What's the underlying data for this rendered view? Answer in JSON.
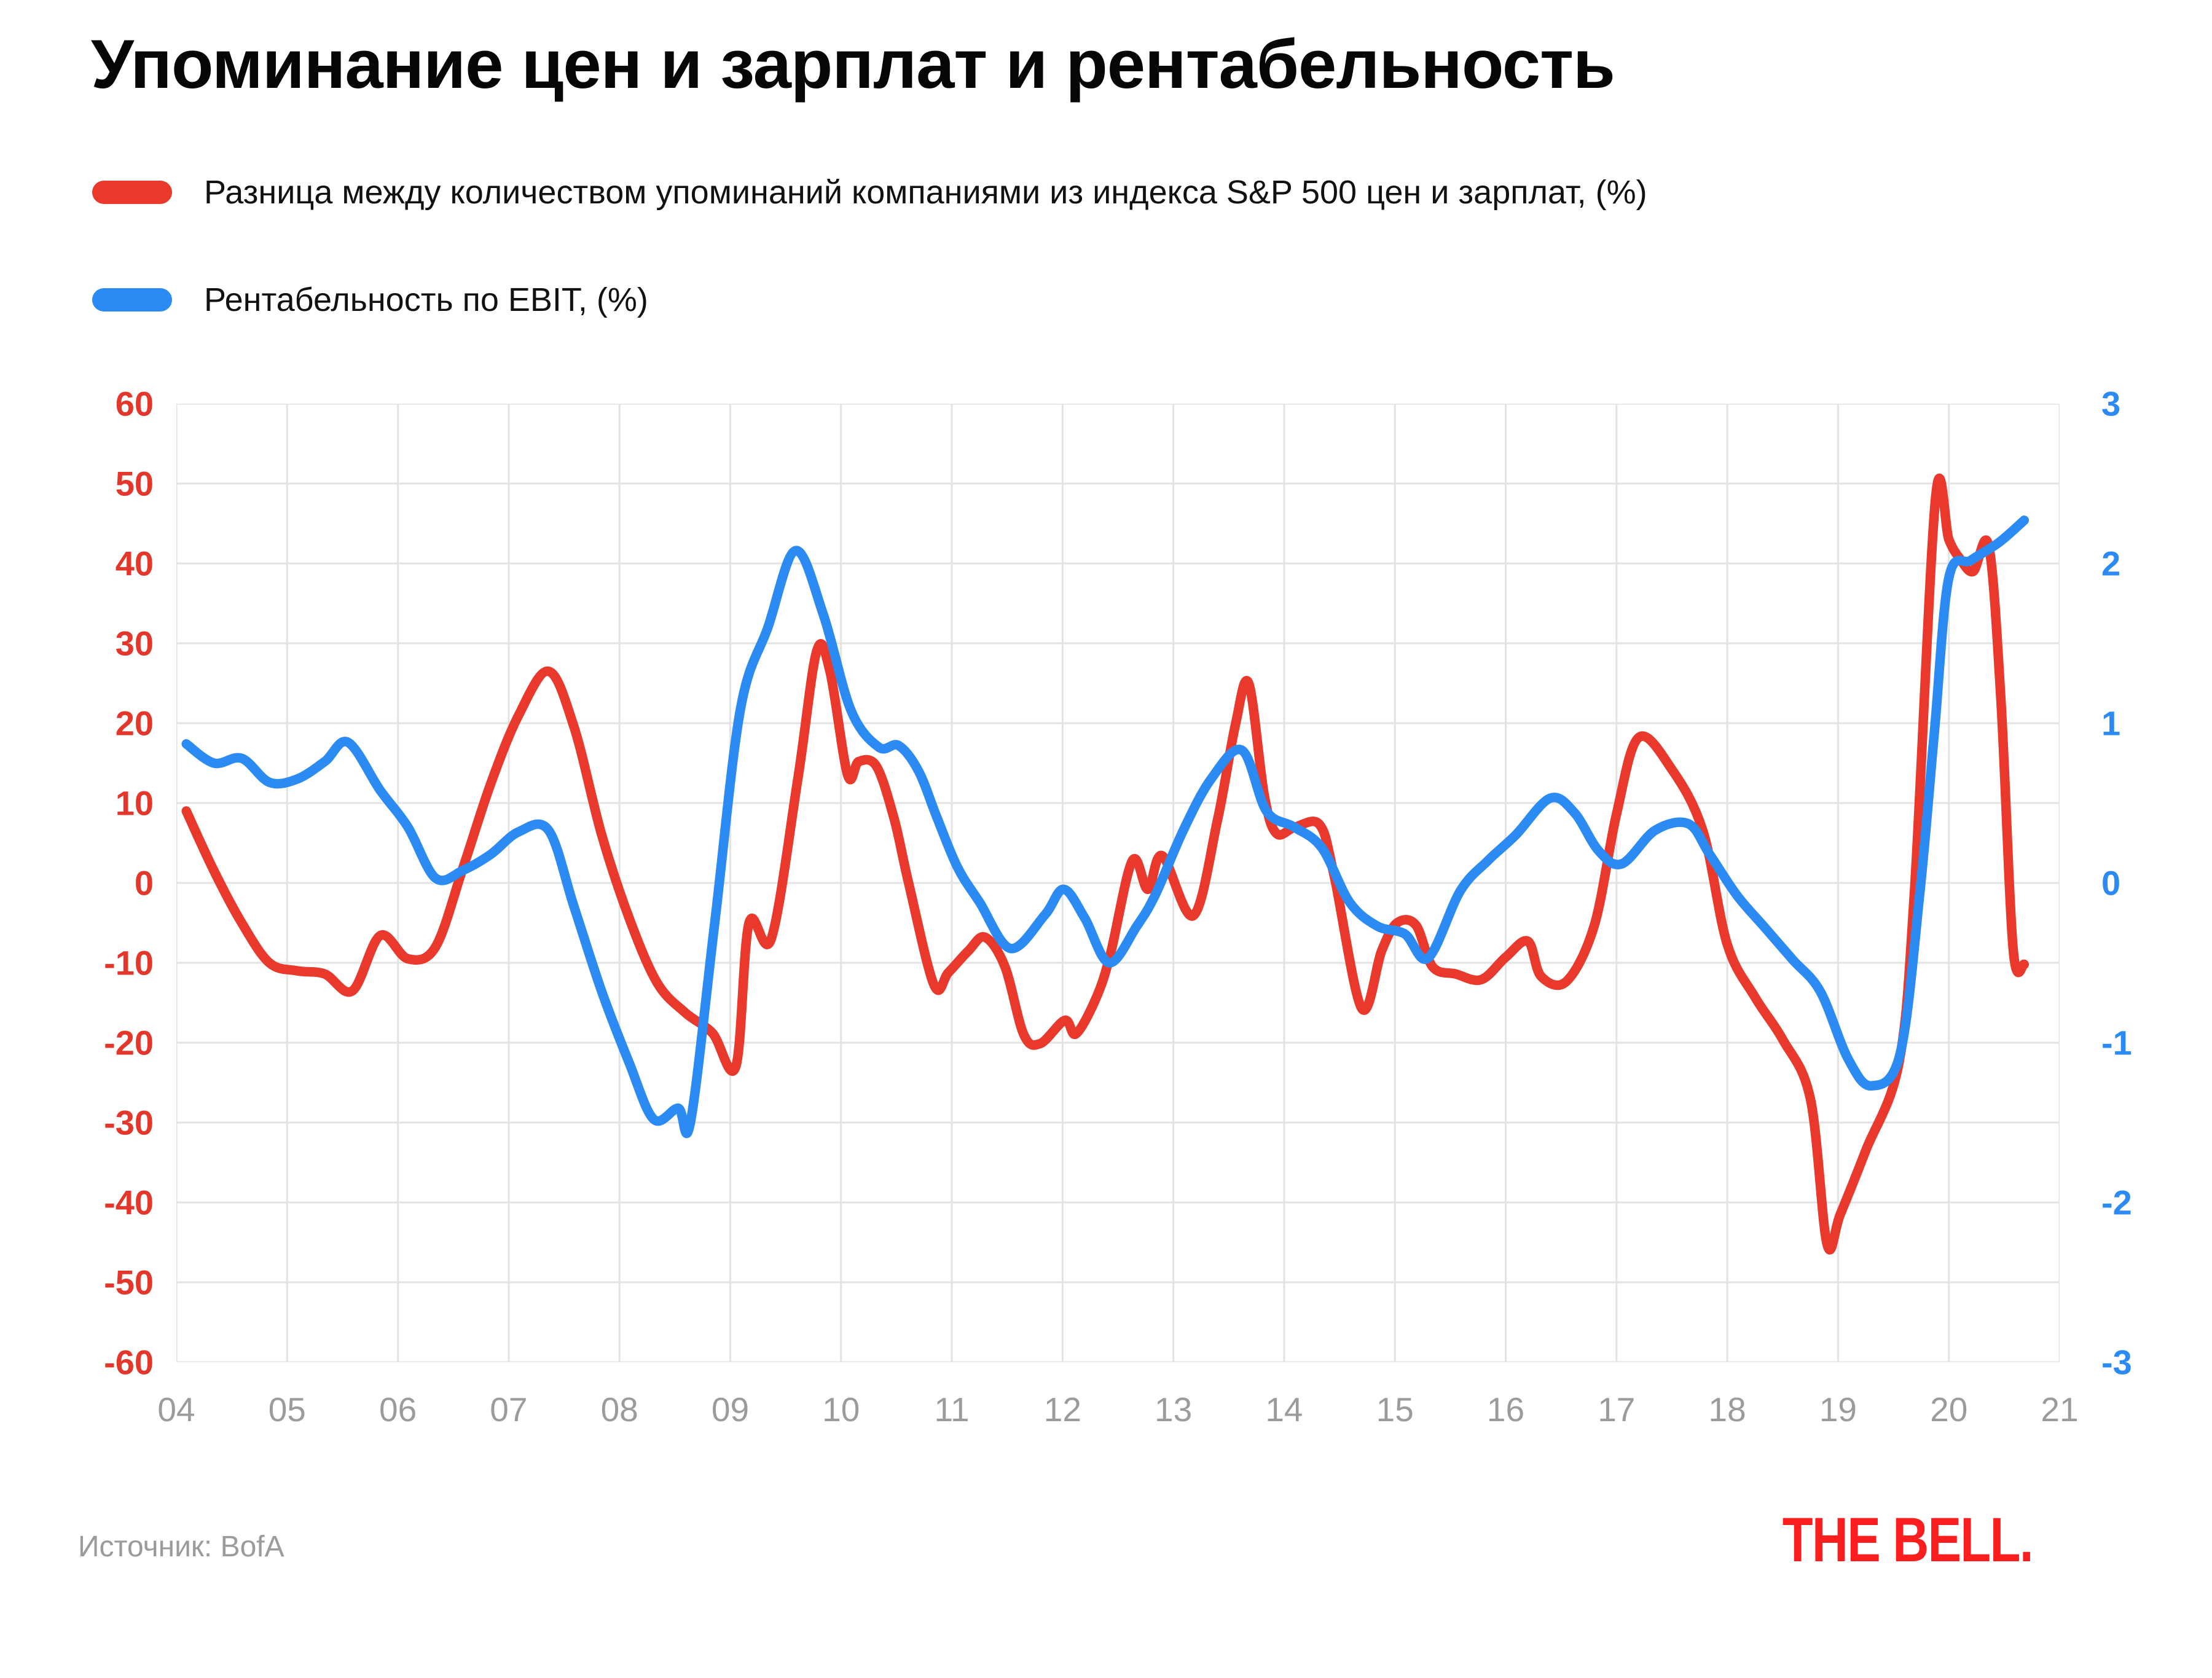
{
  "title": "Упоминание цен и зарплат и рентабельность",
  "footer": {
    "source": "Источник: BofA",
    "logo": "THE BELL."
  },
  "chart_data": {
    "type": "line",
    "title": "Упоминание цен и зарплат и рентабельность",
    "grid": true,
    "grid_color": "#e3e3e3",
    "legend_position": "top-left",
    "x_axis": {
      "min": 4,
      "max": 21,
      "tick_labels": [
        "04",
        "05",
        "06",
        "07",
        "08",
        "09",
        "10",
        "11",
        "12",
        "13",
        "14",
        "15",
        "16",
        "17",
        "18",
        "19",
        "20",
        "21"
      ],
      "color": "#9b9b9b"
    },
    "left_axis": {
      "min": -60,
      "max": 60,
      "tick_labels": [
        "60",
        "50",
        "40",
        "30",
        "20",
        "10",
        "0",
        "-10",
        "-20",
        "-30",
        "-40",
        "-50",
        "-60"
      ],
      "color": "#e4372c"
    },
    "right_axis": {
      "min": -3,
      "max": 3,
      "tick_labels": [
        "3",
        "2",
        "1",
        "0",
        "-1",
        "-2",
        "-3"
      ],
      "color": "#2b8bf2"
    },
    "series": [
      {
        "name": "Разница между количеством упоминаний компаниями из индекса S&P 500 цен и зарплат, (%)",
        "color": "#e8392c",
        "axis": "left",
        "points": [
          [
            4.09,
            9
          ],
          [
            4.34,
            1.5
          ],
          [
            4.59,
            -5
          ],
          [
            4.84,
            -10
          ],
          [
            5.09,
            -11
          ],
          [
            5.34,
            -11.4
          ],
          [
            5.59,
            -13.5
          ],
          [
            5.84,
            -6.6
          ],
          [
            6.09,
            -9.5
          ],
          [
            6.34,
            -8
          ],
          [
            6.59,
            2
          ],
          [
            6.84,
            12.5
          ],
          [
            7.09,
            21
          ],
          [
            7.36,
            26.5
          ],
          [
            7.59,
            19.5
          ],
          [
            7.84,
            6
          ],
          [
            8.09,
            -4.5
          ],
          [
            8.34,
            -12.5
          ],
          [
            8.59,
            -16.2
          ],
          [
            8.84,
            -18.8
          ],
          [
            9.05,
            -23
          ],
          [
            9.17,
            -5
          ],
          [
            9.37,
            -7
          ],
          [
            9.61,
            13
          ],
          [
            9.78,
            29
          ],
          [
            9.9,
            26.5
          ],
          [
            10.06,
            13.5
          ],
          [
            10.16,
            15.2
          ],
          [
            10.32,
            14.6
          ],
          [
            10.48,
            8
          ],
          [
            10.61,
            0
          ],
          [
            10.84,
            -12.8
          ],
          [
            10.97,
            -11.2
          ],
          [
            11.15,
            -8.5
          ],
          [
            11.3,
            -6.8
          ],
          [
            11.48,
            -10.5
          ],
          [
            11.65,
            -19
          ],
          [
            11.8,
            -20.1
          ],
          [
            12.02,
            -17.2
          ],
          [
            12.12,
            -18.9
          ],
          [
            12.3,
            -14.5
          ],
          [
            12.43,
            -9
          ],
          [
            12.63,
            2.8
          ],
          [
            12.77,
            -0.8
          ],
          [
            12.9,
            3.4
          ],
          [
            13.18,
            -4.1
          ],
          [
            13.4,
            8
          ],
          [
            13.56,
            19.8
          ],
          [
            13.68,
            25
          ],
          [
            13.82,
            11
          ],
          [
            13.93,
            6.2
          ],
          [
            14.1,
            7
          ],
          [
            14.32,
            7.3
          ],
          [
            14.45,
            1
          ],
          [
            14.7,
            -15.7
          ],
          [
            14.88,
            -8.5
          ],
          [
            15.02,
            -5
          ],
          [
            15.19,
            -5.3
          ],
          [
            15.34,
            -10.5
          ],
          [
            15.55,
            -11.4
          ],
          [
            15.78,
            -12.1
          ],
          [
            16.0,
            -9.3
          ],
          [
            16.2,
            -7.3
          ],
          [
            16.32,
            -11.7
          ],
          [
            16.55,
            -12.3
          ],
          [
            16.8,
            -5.3
          ],
          [
            17.0,
            8.6
          ],
          [
            17.2,
            18.2
          ],
          [
            17.5,
            14.2
          ],
          [
            17.78,
            6.5
          ],
          [
            18.0,
            -7.7
          ],
          [
            18.25,
            -14.3
          ],
          [
            18.5,
            -19.6
          ],
          [
            18.75,
            -27
          ],
          [
            18.9,
            -45.2
          ],
          [
            19.02,
            -41.5
          ],
          [
            19.25,
            -33.5
          ],
          [
            19.55,
            -22.5
          ],
          [
            19.69,
            -1
          ],
          [
            19.88,
            48.2
          ],
          [
            20.0,
            43
          ],
          [
            20.1,
            40.6
          ],
          [
            20.22,
            39
          ],
          [
            20.36,
            42.2
          ],
          [
            20.47,
            23
          ],
          [
            20.58,
            -8.2
          ],
          [
            20.68,
            -10.2
          ]
        ]
      },
      {
        "name": "Рентабельность по EBIT, (%)",
        "color": "#2b8bf2",
        "axis": "right",
        "points": [
          [
            4.09,
            0.87
          ],
          [
            4.34,
            0.75
          ],
          [
            4.59,
            0.78
          ],
          [
            4.84,
            0.63
          ],
          [
            5.09,
            0.65
          ],
          [
            5.34,
            0.76
          ],
          [
            5.55,
            0.88
          ],
          [
            5.84,
            0.58
          ],
          [
            6.09,
            0.35
          ],
          [
            6.34,
            0.03
          ],
          [
            6.59,
            0.08
          ],
          [
            6.84,
            0.18
          ],
          [
            7.09,
            0.32
          ],
          [
            7.36,
            0.33
          ],
          [
            7.59,
            -0.15
          ],
          [
            7.84,
            -0.68
          ],
          [
            8.09,
            -1.13
          ],
          [
            8.31,
            -1.48
          ],
          [
            8.53,
            -1.41
          ],
          [
            8.64,
            -1.5
          ],
          [
            8.86,
            -0.25
          ],
          [
            9.09,
            1.08
          ],
          [
            9.34,
            1.6
          ],
          [
            9.59,
            2.08
          ],
          [
            9.84,
            1.68
          ],
          [
            10.09,
            1.08
          ],
          [
            10.34,
            0.85
          ],
          [
            10.52,
            0.86
          ],
          [
            10.7,
            0.7
          ],
          [
            10.86,
            0.42
          ],
          [
            11.05,
            0.1
          ],
          [
            11.25,
            -0.12
          ],
          [
            11.53,
            -0.41
          ],
          [
            11.84,
            -0.2
          ],
          [
            12.01,
            -0.04
          ],
          [
            12.2,
            -0.22
          ],
          [
            12.42,
            -0.5
          ],
          [
            12.67,
            -0.27
          ],
          [
            12.84,
            -0.07
          ],
          [
            13.09,
            0.33
          ],
          [
            13.34,
            0.65
          ],
          [
            13.62,
            0.83
          ],
          [
            13.84,
            0.45
          ],
          [
            14.09,
            0.35
          ],
          [
            14.34,
            0.22
          ],
          [
            14.59,
            -0.12
          ],
          [
            14.84,
            -0.27
          ],
          [
            15.09,
            -0.32
          ],
          [
            15.3,
            -0.47
          ],
          [
            15.59,
            -0.05
          ],
          [
            15.84,
            0.14
          ],
          [
            16.09,
            0.3
          ],
          [
            16.4,
            0.53
          ],
          [
            16.62,
            0.44
          ],
          [
            16.84,
            0.2
          ],
          [
            17.05,
            0.12
          ],
          [
            17.35,
            0.33
          ],
          [
            17.65,
            0.37
          ],
          [
            17.84,
            0.18
          ],
          [
            18.09,
            -0.08
          ],
          [
            18.34,
            -0.28
          ],
          [
            18.59,
            -0.48
          ],
          [
            18.84,
            -0.68
          ],
          [
            19.09,
            -1.1
          ],
          [
            19.3,
            -1.27
          ],
          [
            19.56,
            -1.07
          ],
          [
            19.74,
            -0.05
          ],
          [
            19.87,
            0.95
          ],
          [
            20.0,
            1.91
          ],
          [
            20.2,
            2.02
          ],
          [
            20.45,
            2.13
          ],
          [
            20.68,
            2.27
          ]
        ]
      }
    ]
  }
}
